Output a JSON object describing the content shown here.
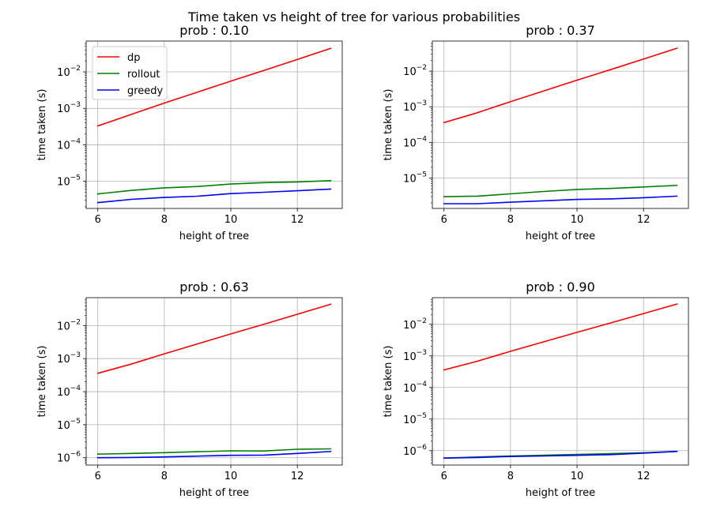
{
  "figure": {
    "suptitle": "Time taken vs height of tree for various probabilities"
  },
  "chart_data": [
    {
      "type": "line",
      "title": "prob : 0.10",
      "xlabel": "height of tree",
      "ylabel": "time taken (s)",
      "yscale": "log",
      "xlim": [
        5.65,
        13.35
      ],
      "ylim": [
        1.8e-06,
        0.07
      ],
      "xticks": [
        6,
        8,
        10,
        12
      ],
      "yticks_exp": [
        -5,
        -4,
        -3,
        -2
      ],
      "grid": true,
      "legend": "upper-left",
      "x": [
        6,
        7,
        8,
        9,
        10,
        11,
        12,
        13
      ],
      "series": [
        {
          "name": "dp",
          "color": "#ff0000",
          "values": [
            0.00033,
            0.00068,
            0.0014,
            0.0028,
            0.0056,
            0.011,
            0.022,
            0.044
          ]
        },
        {
          "name": "rollout",
          "color": "#008000",
          "values": [
            4.5e-06,
            5.6e-06,
            6.6e-06,
            7.2e-06,
            8.4e-06,
            9.2e-06,
            9.6e-06,
            1.04e-05
          ]
        },
        {
          "name": "greedy",
          "color": "#0000ff",
          "values": [
            2.6e-06,
            3.2e-06,
            3.6e-06,
            3.9e-06,
            4.6e-06,
            5e-06,
            5.5e-06,
            6.1e-06
          ]
        }
      ]
    },
    {
      "type": "line",
      "title": "prob : 0.37",
      "xlabel": "height of tree",
      "ylabel": "time taken (s)",
      "yscale": "log",
      "xlim": [
        5.65,
        13.35
      ],
      "ylim": [
        1.4e-06,
        0.07
      ],
      "xticks": [
        6,
        8,
        10,
        12
      ],
      "yticks_exp": [
        -5,
        -4,
        -3,
        -2
      ],
      "grid": true,
      "x": [
        6,
        7,
        8,
        9,
        10,
        11,
        12,
        13
      ],
      "series": [
        {
          "name": "dp",
          "color": "#ff0000",
          "values": [
            0.00036,
            0.00068,
            0.0014,
            0.0028,
            0.0056,
            0.011,
            0.022,
            0.044
          ]
        },
        {
          "name": "rollout",
          "color": "#008000",
          "values": [
            3e-06,
            3.1e-06,
            3.6e-06,
            4.2e-06,
            4.8e-06,
            5.1e-06,
            5.6e-06,
            6.2e-06
          ]
        },
        {
          "name": "greedy",
          "color": "#0000ff",
          "values": [
            1.9e-06,
            1.9e-06,
            2.1e-06,
            2.3e-06,
            2.5e-06,
            2.6e-06,
            2.8e-06,
            3.1e-06
          ]
        }
      ]
    },
    {
      "type": "line",
      "title": "prob : 0.63",
      "xlabel": "height of tree",
      "ylabel": "time taken (s)",
      "yscale": "log",
      "xlim": [
        5.65,
        13.35
      ],
      "ylim": [
        6e-07,
        0.07
      ],
      "xticks": [
        6,
        8,
        10,
        12
      ],
      "yticks_exp": [
        -6,
        -5,
        -4,
        -3,
        -2
      ],
      "grid": true,
      "x": [
        6,
        7,
        8,
        9,
        10,
        11,
        12,
        13
      ],
      "series": [
        {
          "name": "dp",
          "color": "#ff0000",
          "values": [
            0.00036,
            0.00068,
            0.0014,
            0.0028,
            0.0056,
            0.011,
            0.022,
            0.044
          ]
        },
        {
          "name": "rollout",
          "color": "#008000",
          "values": [
            1.28e-06,
            1.35e-06,
            1.42e-06,
            1.52e-06,
            1.62e-06,
            1.6e-06,
            1.8e-06,
            1.85e-06
          ]
        },
        {
          "name": "greedy",
          "color": "#0000ff",
          "values": [
            1e-06,
            1.02e-06,
            1.06e-06,
            1.12e-06,
            1.18e-06,
            1.2e-06,
            1.35e-06,
            1.55e-06
          ]
        }
      ]
    },
    {
      "type": "line",
      "title": "prob : 0.90",
      "xlabel": "height of tree",
      "ylabel": "time taken (s)",
      "yscale": "log",
      "xlim": [
        5.65,
        13.35
      ],
      "ylim": [
        3.5e-07,
        0.07
      ],
      "xticks": [
        6,
        8,
        10,
        12
      ],
      "yticks_exp": [
        -6,
        -5,
        -4,
        -3,
        -2
      ],
      "grid": true,
      "x": [
        6,
        7,
        8,
        9,
        10,
        11,
        12,
        13
      ],
      "series": [
        {
          "name": "dp",
          "color": "#ff0000",
          "values": [
            0.00036,
            0.00068,
            0.0014,
            0.0028,
            0.0056,
            0.011,
            0.022,
            0.044
          ]
        },
        {
          "name": "rollout",
          "color": "#008000",
          "values": [
            5.8e-07,
            6.3e-07,
            6.8e-07,
            7.2e-07,
            7.6e-07,
            8e-07,
            8.6e-07,
            9.5e-07
          ]
        },
        {
          "name": "greedy",
          "color": "#0000ff",
          "values": [
            5.8e-07,
            6.1e-07,
            6.5e-07,
            6.8e-07,
            7.1e-07,
            7.5e-07,
            8.3e-07,
            9.5e-07
          ]
        }
      ]
    }
  ]
}
